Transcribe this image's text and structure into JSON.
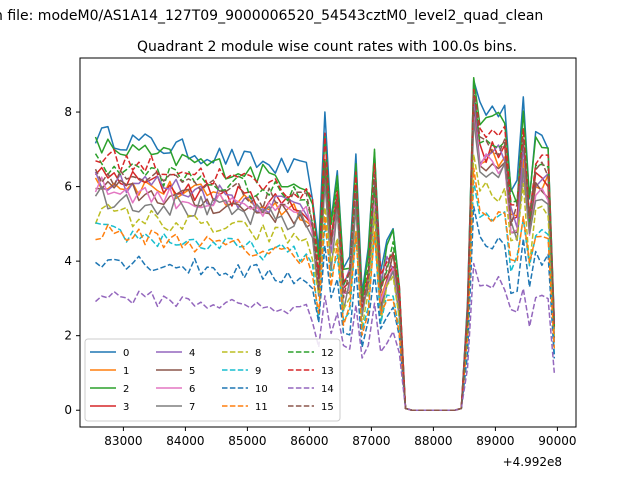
{
  "figure": {
    "suptitle": "n file: modeM0/AS1A14_127T09_9000006520_54543cztM0_level2_quad_clean",
    "offset_label": "+4.992e8"
  },
  "chart_data": {
    "type": "line",
    "title": "Quadrant 2 module wise count rates with 100.0s bins.",
    "xlabel": "",
    "ylabel": "",
    "x_offset": 499200000,
    "xlim": [
      82300,
      90300
    ],
    "ylim": [
      -0.45,
      9.45
    ],
    "xticks": [
      83000,
      84000,
      85000,
      86000,
      87000,
      88000,
      89000,
      90000
    ],
    "yticks": [
      0,
      2,
      4,
      6,
      8
    ],
    "grid": false,
    "legend": {
      "placement": "lower-left",
      "columns": 4
    },
    "gap": [
      87550,
      88450
    ],
    "x_start": 82550,
    "x_end": 89950,
    "x_step": 100,
    "series": [
      {
        "name": "0",
        "color": "#1f77b4",
        "dash": false,
        "base": 7.4,
        "scale": 1.0,
        "amp": 0.3
      },
      {
        "name": "1",
        "color": "#ff7f0e",
        "dash": false,
        "base": 6.2,
        "scale": 0.92,
        "amp": 0.3
      },
      {
        "name": "2",
        "color": "#2ca02c",
        "dash": false,
        "base": 7.1,
        "scale": 1.0,
        "amp": 0.3
      },
      {
        "name": "3",
        "color": "#d62728",
        "dash": false,
        "base": 6.3,
        "scale": 0.95,
        "amp": 0.3
      },
      {
        "name": "4",
        "color": "#9467bd",
        "dash": false,
        "base": 6.3,
        "scale": 0.93,
        "amp": 0.35
      },
      {
        "name": "5",
        "color": "#8c564b",
        "dash": false,
        "base": 6.0,
        "scale": 0.9,
        "amp": 0.3
      },
      {
        "name": "6",
        "color": "#e377c2",
        "dash": false,
        "base": 6.0,
        "scale": 0.9,
        "amp": 0.3
      },
      {
        "name": "7",
        "color": "#7f7f7f",
        "dash": false,
        "base": 5.8,
        "scale": 0.87,
        "amp": 0.35
      },
      {
        "name": "8",
        "color": "#bcbd22",
        "dash": true,
        "base": 5.3,
        "scale": 0.78,
        "amp": 0.3
      },
      {
        "name": "9",
        "color": "#17becf",
        "dash": true,
        "base": 4.8,
        "scale": 0.7,
        "amp": 0.25
      },
      {
        "name": "10",
        "color": "#1f77b4",
        "dash": true,
        "base": 4.1,
        "scale": 0.62,
        "amp": 0.25
      },
      {
        "name": "11",
        "color": "#ff7f0e",
        "dash": true,
        "base": 4.8,
        "scale": 0.73,
        "amp": 0.25
      },
      {
        "name": "12",
        "color": "#2ca02c",
        "dash": true,
        "base": 6.6,
        "scale": 0.97,
        "amp": 0.3
      },
      {
        "name": "13",
        "color": "#d62728",
        "dash": true,
        "base": 6.8,
        "scale": 0.95,
        "amp": 0.3
      },
      {
        "name": "14",
        "color": "#9467bd",
        "dash": true,
        "base": 3.1,
        "scale": 0.45,
        "amp": 0.2
      },
      {
        "name": "15",
        "color": "#8c564b",
        "dash": true,
        "base": 6.4,
        "scale": 0.95,
        "amp": 0.3
      }
    ]
  }
}
